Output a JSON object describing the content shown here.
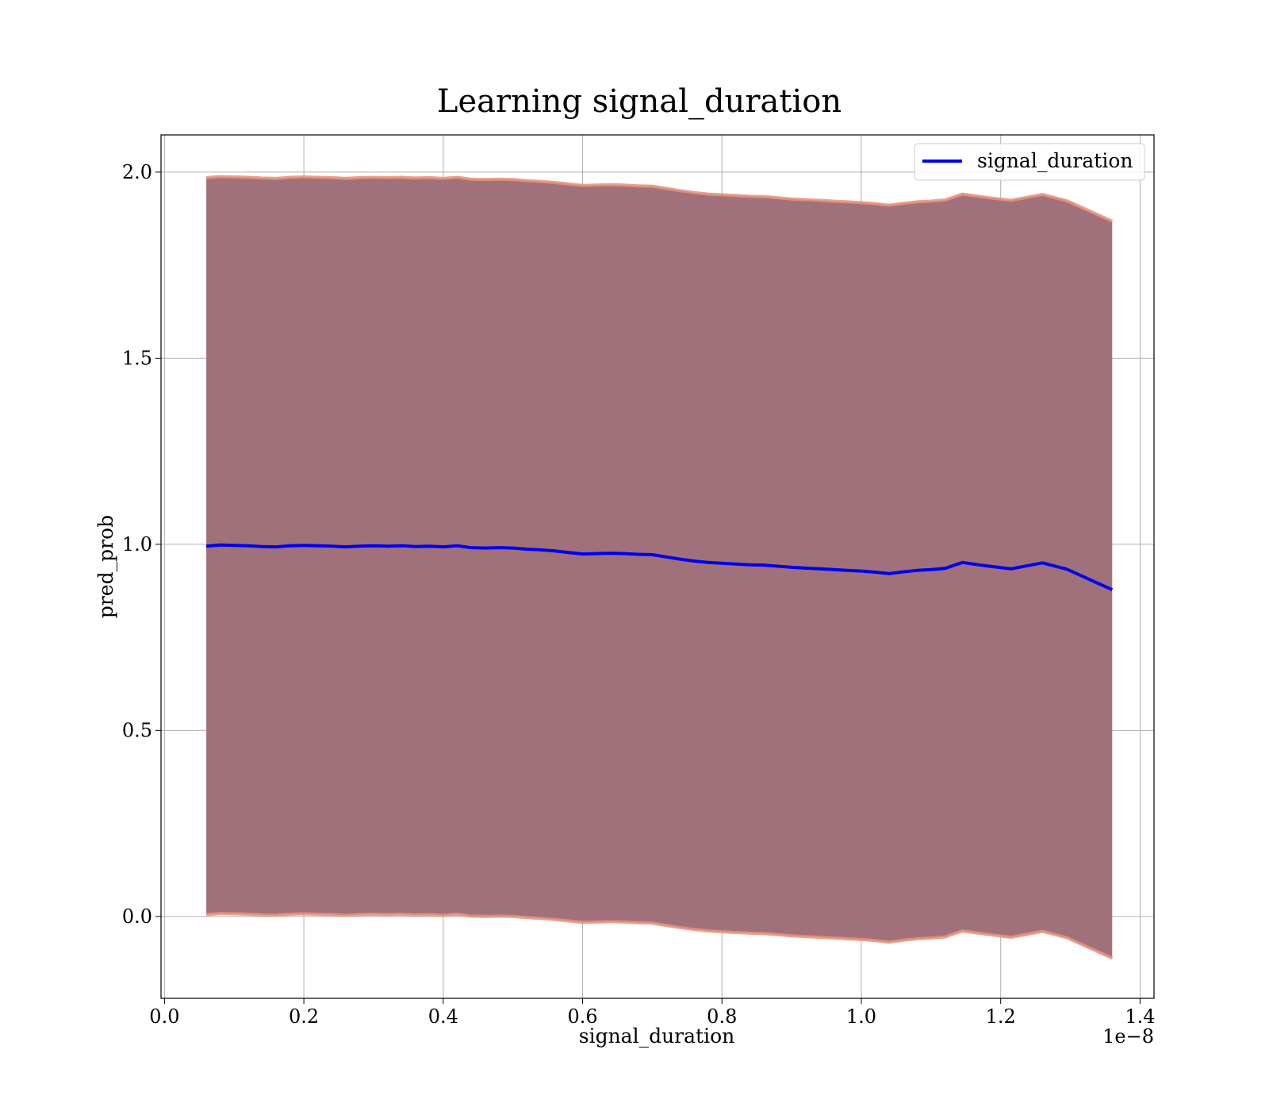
{
  "chart_data": {
    "type": "area",
    "title": "Learning signal_duration",
    "xlabel": "signal_duration",
    "ylabel": "pred_prob",
    "x_offset_text": "1e−8",
    "xlim": [
      -0.005,
      1.42
    ],
    "ylim": [
      -0.22,
      2.1
    ],
    "x_ticks": [
      0.0,
      0.2,
      0.4,
      0.6,
      0.8,
      1.0,
      1.2,
      1.4
    ],
    "x_tick_labels": [
      "0.0",
      "0.2",
      "0.4",
      "0.6",
      "0.8",
      "1.0",
      "1.2",
      "1.4"
    ],
    "y_ticks": [
      0.0,
      0.5,
      1.0,
      1.5,
      2.0
    ],
    "y_tick_labels": [
      "0.0",
      "0.5",
      "1.0",
      "1.5",
      "2.0"
    ],
    "grid": true,
    "legend_position": "top-right",
    "colors": {
      "line": "#0000ee",
      "band_fill": "#a0717a",
      "band_edge": "#e8907a",
      "grid": "#b0b0b0"
    },
    "series": [
      {
        "name": "signal_duration",
        "x": [
          0.06,
          0.08,
          0.1,
          0.12,
          0.14,
          0.16,
          0.18,
          0.2,
          0.22,
          0.24,
          0.26,
          0.28,
          0.3,
          0.32,
          0.34,
          0.36,
          0.38,
          0.4,
          0.42,
          0.44,
          0.46,
          0.48,
          0.5,
          0.52,
          0.54,
          0.56,
          0.58,
          0.6,
          0.62,
          0.64,
          0.66,
          0.68,
          0.7,
          0.72,
          0.74,
          0.76,
          0.78,
          0.8,
          0.82,
          0.84,
          0.86,
          0.88,
          0.9,
          0.92,
          0.94,
          0.96,
          0.98,
          1.0,
          1.02,
          1.04,
          1.06,
          1.08,
          1.1,
          1.12,
          1.145,
          1.18,
          1.215,
          1.26,
          1.295,
          1.36
        ],
        "y": [
          0.995,
          0.998,
          0.997,
          0.996,
          0.994,
          0.993,
          0.996,
          0.997,
          0.996,
          0.995,
          0.993,
          0.995,
          0.996,
          0.995,
          0.996,
          0.994,
          0.995,
          0.993,
          0.996,
          0.991,
          0.99,
          0.991,
          0.99,
          0.987,
          0.985,
          0.982,
          0.978,
          0.974,
          0.975,
          0.976,
          0.975,
          0.973,
          0.972,
          0.966,
          0.96,
          0.955,
          0.951,
          0.949,
          0.947,
          0.945,
          0.944,
          0.941,
          0.938,
          0.936,
          0.934,
          0.932,
          0.93,
          0.928,
          0.925,
          0.921,
          0.926,
          0.93,
          0.932,
          0.935,
          0.951,
          0.942,
          0.934,
          0.95,
          0.933,
          0.878
        ],
        "band_upper": [
          1.985,
          1.988,
          1.987,
          1.986,
          1.984,
          1.983,
          1.986,
          1.987,
          1.986,
          1.985,
          1.983,
          1.985,
          1.986,
          1.985,
          1.986,
          1.984,
          1.985,
          1.983,
          1.986,
          1.981,
          1.98,
          1.981,
          1.98,
          1.977,
          1.975,
          1.972,
          1.968,
          1.964,
          1.965,
          1.966,
          1.965,
          1.963,
          1.962,
          1.956,
          1.95,
          1.945,
          1.941,
          1.939,
          1.937,
          1.935,
          1.934,
          1.931,
          1.928,
          1.926,
          1.924,
          1.922,
          1.92,
          1.918,
          1.915,
          1.911,
          1.916,
          1.92,
          1.922,
          1.925,
          1.941,
          1.932,
          1.924,
          1.94,
          1.923,
          1.868
        ],
        "band_lower": [
          0.005,
          0.008,
          0.007,
          0.006,
          0.004,
          0.003,
          0.006,
          0.007,
          0.006,
          0.005,
          0.003,
          0.005,
          0.006,
          0.005,
          0.006,
          0.004,
          0.005,
          0.003,
          0.006,
          0.001,
          0.0,
          0.001,
          0.0,
          -0.003,
          -0.005,
          -0.008,
          -0.012,
          -0.016,
          -0.015,
          -0.014,
          -0.015,
          -0.017,
          -0.018,
          -0.024,
          -0.03,
          -0.035,
          -0.039,
          -0.041,
          -0.043,
          -0.045,
          -0.046,
          -0.049,
          -0.052,
          -0.054,
          -0.056,
          -0.058,
          -0.06,
          -0.062,
          -0.065,
          -0.069,
          -0.064,
          -0.06,
          -0.058,
          -0.055,
          -0.039,
          -0.048,
          -0.056,
          -0.04,
          -0.057,
          -0.112
        ]
      }
    ]
  }
}
